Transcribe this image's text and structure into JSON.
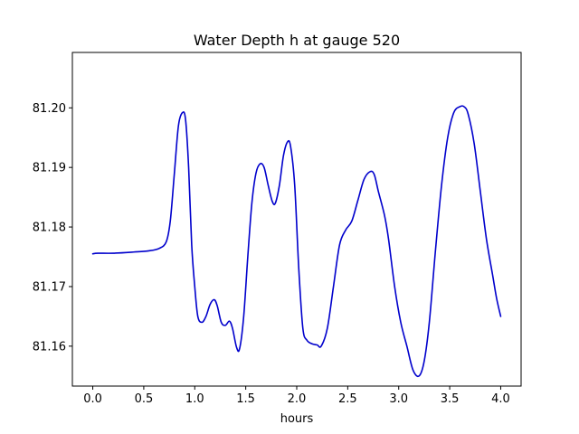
{
  "chart_data": {
    "type": "line",
    "title": "Water Depth h at gauge 520",
    "xlabel": "hours",
    "ylabel": "",
    "xlim": [
      -0.2,
      4.2
    ],
    "ylim": [
      81.1533,
      81.2093
    ],
    "grid": false,
    "legend": "none",
    "x_ticks": [
      0.0,
      0.5,
      1.0,
      1.5,
      2.0,
      2.5,
      3.0,
      3.5,
      4.0
    ],
    "x_tick_labels": [
      "0.0",
      "0.5",
      "1.0",
      "1.5",
      "2.0",
      "2.5",
      "3.0",
      "3.5",
      "4.0"
    ],
    "y_ticks": [
      81.16,
      81.17,
      81.18,
      81.19,
      81.2
    ],
    "y_tick_labels": [
      "81.16",
      "81.17",
      "81.18",
      "81.19",
      "81.20"
    ],
    "series": [
      {
        "name": "",
        "color": "#0000cc",
        "points": [
          [
            0.0,
            81.1755
          ],
          [
            0.05,
            81.1756
          ],
          [
            0.2,
            81.1756
          ],
          [
            0.4,
            81.1758
          ],
          [
            0.55,
            81.176
          ],
          [
            0.65,
            81.1764
          ],
          [
            0.72,
            81.1775
          ],
          [
            0.76,
            81.181
          ],
          [
            0.8,
            81.189
          ],
          [
            0.84,
            81.197
          ],
          [
            0.88,
            81.1992
          ],
          [
            0.91,
            81.198
          ],
          [
            0.94,
            81.19
          ],
          [
            0.97,
            81.177
          ],
          [
            1.0,
            81.17
          ],
          [
            1.03,
            81.165
          ],
          [
            1.07,
            81.164
          ],
          [
            1.11,
            81.165
          ],
          [
            1.15,
            81.167
          ],
          [
            1.19,
            81.1678
          ],
          [
            1.22,
            81.1668
          ],
          [
            1.26,
            81.164
          ],
          [
            1.3,
            81.1635
          ],
          [
            1.34,
            81.1642
          ],
          [
            1.37,
            81.163
          ],
          [
            1.41,
            81.1598
          ],
          [
            1.44,
            81.1596
          ],
          [
            1.48,
            81.165
          ],
          [
            1.52,
            81.175
          ],
          [
            1.56,
            81.184
          ],
          [
            1.6,
            81.189
          ],
          [
            1.64,
            81.1906
          ],
          [
            1.68,
            81.19
          ],
          [
            1.72,
            81.187
          ],
          [
            1.76,
            81.1843
          ],
          [
            1.79,
            81.184
          ],
          [
            1.83,
            81.187
          ],
          [
            1.87,
            81.192
          ],
          [
            1.91,
            81.1943
          ],
          [
            1.94,
            81.1935
          ],
          [
            1.98,
            81.187
          ],
          [
            2.02,
            81.173
          ],
          [
            2.06,
            81.163
          ],
          [
            2.1,
            81.161
          ],
          [
            2.15,
            81.1604
          ],
          [
            2.2,
            81.1602
          ],
          [
            2.24,
            81.16
          ],
          [
            2.3,
            81.163
          ],
          [
            2.36,
            81.17
          ],
          [
            2.42,
            81.177
          ],
          [
            2.48,
            81.1795
          ],
          [
            2.54,
            81.181
          ],
          [
            2.6,
            81.1845
          ],
          [
            2.66,
            81.188
          ],
          [
            2.72,
            81.1893
          ],
          [
            2.76,
            81.1888
          ],
          [
            2.8,
            81.186
          ],
          [
            2.86,
            81.182
          ],
          [
            2.9,
            81.178
          ],
          [
            2.96,
            81.17
          ],
          [
            3.02,
            81.164
          ],
          [
            3.08,
            81.16
          ],
          [
            3.14,
            81.156
          ],
          [
            3.2,
            81.155
          ],
          [
            3.25,
            81.1575
          ],
          [
            3.3,
            81.164
          ],
          [
            3.36,
            81.176
          ],
          [
            3.42,
            81.187
          ],
          [
            3.48,
            81.195
          ],
          [
            3.54,
            81.1992
          ],
          [
            3.6,
            81.2002
          ],
          [
            3.64,
            81.2002
          ],
          [
            3.68,
            81.199
          ],
          [
            3.74,
            81.194
          ],
          [
            3.8,
            81.186
          ],
          [
            3.86,
            81.178
          ],
          [
            3.92,
            81.172
          ],
          [
            3.96,
            81.168
          ],
          [
            4.0,
            81.165
          ]
        ]
      }
    ]
  }
}
